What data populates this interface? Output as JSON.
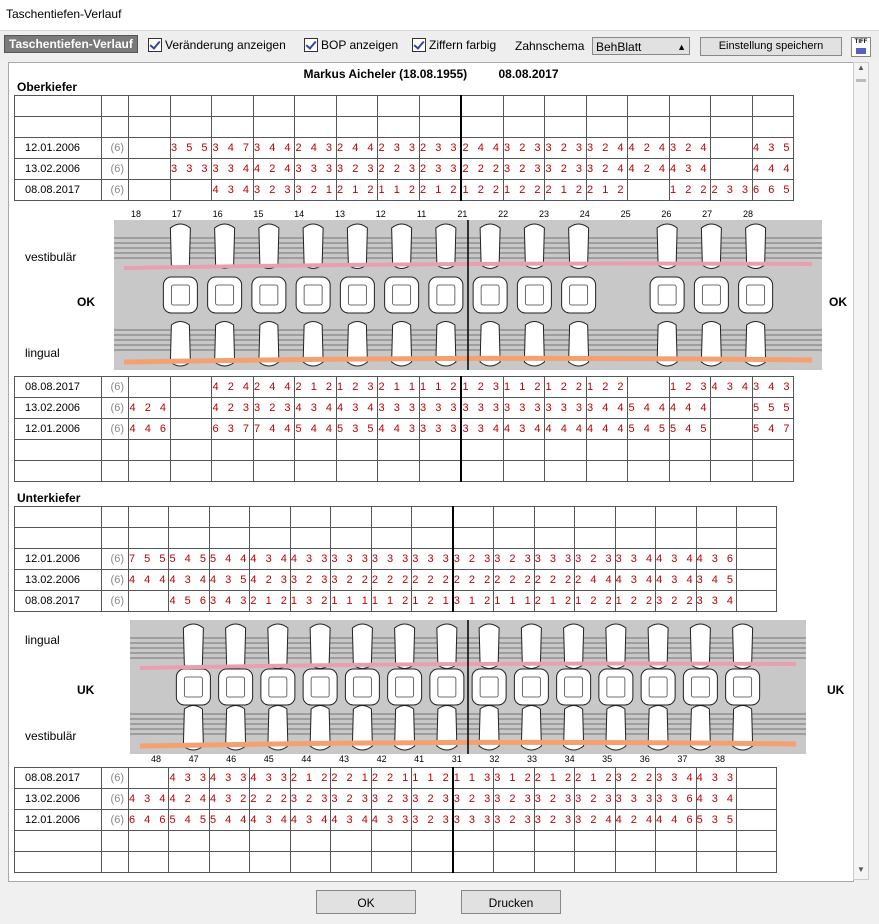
{
  "window": {
    "title": "Taschentiefen-Verlauf"
  },
  "toolbar": {
    "tab_label": "Taschentiefen-Verlauf",
    "show_changes": "Veränderung anzeigen",
    "show_bop": "BOP anzeigen",
    "colored_digits": "Ziffern farbig",
    "scheme_label": "Zahnschema",
    "scheme_value": "BehBlatt",
    "save_button": "Einstellung speichern",
    "tiff_label": "TIFF"
  },
  "header": {
    "patient": "Markus Aicheler (18.08.1955)",
    "date": "08.08.2017"
  },
  "upper": {
    "label": "Oberkiefer",
    "vestibular_label": "vestibulär",
    "lingual_label": "lingual",
    "side_label": "OK",
    "teeth": [
      "18",
      "17",
      "16",
      "15",
      "14",
      "13",
      "12",
      "11",
      "21",
      "22",
      "23",
      "24",
      "25",
      "26",
      "27",
      "28"
    ],
    "rows_top": [
      {
        "date": "12.01.2006",
        "count": "(6)",
        "values": [
          "",
          "355",
          "347",
          "344",
          "243",
          "244",
          "233",
          "233",
          "244",
          "323",
          "323",
          "324",
          "424",
          "324",
          "",
          "435"
        ]
      },
      {
        "date": "13.02.2006",
        "count": "(6)",
        "values": [
          "",
          "333",
          "334",
          "424",
          "333",
          "323",
          "223",
          "233",
          "222",
          "323",
          "323",
          "324",
          "424",
          "434",
          "",
          "444"
        ]
      },
      {
        "date": "08.08.2017",
        "count": "(6)",
        "values": [
          "",
          "",
          "434",
          "323",
          "321",
          "212",
          "112",
          "212",
          "122",
          "122",
          "212",
          "212",
          "",
          "122",
          "233",
          "665"
        ]
      }
    ],
    "rows_bottom": [
      {
        "date": "08.08.2017",
        "count": "(6)",
        "values": [
          "",
          "",
          "424",
          "244",
          "212",
          "123",
          "211",
          "112",
          "123",
          "112",
          "122",
          "122",
          "",
          "123",
          "434",
          "343"
        ]
      },
      {
        "date": "13.02.2006",
        "count": "(6)",
        "values": [
          "424",
          "",
          "423",
          "323",
          "434",
          "434",
          "333",
          "333",
          "333",
          "333",
          "333",
          "344",
          "544",
          "444",
          "",
          "555"
        ]
      },
      {
        "date": "12.01.2006",
        "count": "(6)",
        "values": [
          "446",
          "",
          "637",
          "744",
          "544",
          "535",
          "443",
          "333",
          "334",
          "434",
          "444",
          "444",
          "545",
          "545",
          "",
          "547"
        ]
      }
    ]
  },
  "lower": {
    "label": "Unterkiefer",
    "vestibular_label": "vestibulär",
    "lingual_label": "lingual",
    "side_label": "UK",
    "teeth": [
      "48",
      "47",
      "46",
      "45",
      "44",
      "43",
      "42",
      "41",
      "31",
      "32",
      "33",
      "34",
      "35",
      "36",
      "37",
      "38"
    ],
    "rows_top": [
      {
        "date": "12.01.2006",
        "count": "(6)",
        "values": [
          "755",
          "545",
          "544",
          "434",
          "433",
          "333",
          "333",
          "333",
          "323",
          "323",
          "333",
          "323",
          "334",
          "434",
          "436",
          ""
        ]
      },
      {
        "date": "13.02.2006",
        "count": "(6)",
        "values": [
          "444",
          "434",
          "435",
          "423",
          "323",
          "322",
          "222",
          "222",
          "222",
          "222",
          "222",
          "244",
          "434",
          "434",
          "345",
          ""
        ]
      },
      {
        "date": "08.08.2017",
        "count": "(6)",
        "values": [
          "",
          "456",
          "343",
          "212",
          "132",
          "111",
          "112",
          "121",
          "312",
          "111",
          "212",
          "122",
          "122",
          "322",
          "334",
          ""
        ]
      }
    ],
    "rows_bottom": [
      {
        "date": "08.08.2017",
        "count": "(6)",
        "values": [
          "",
          "433",
          "433",
          "433",
          "212",
          "221",
          "221",
          "112",
          "113",
          "312",
          "212",
          "212",
          "322",
          "334",
          "433",
          ""
        ]
      },
      {
        "date": "13.02.2006",
        "count": "(6)",
        "values": [
          "434",
          "424",
          "432",
          "222",
          "323",
          "323",
          "323",
          "323",
          "323",
          "323",
          "323",
          "323",
          "333",
          "336",
          "434",
          ""
        ]
      },
      {
        "date": "12.01.2006",
        "count": "(6)",
        "values": [
          "646",
          "545",
          "544",
          "434",
          "434",
          "434",
          "433",
          "323",
          "333",
          "323",
          "323",
          "324",
          "424",
          "446",
          "535",
          ""
        ]
      }
    ]
  },
  "scale": [
    "10",
    "8",
    "6",
    "4",
    "2"
  ],
  "footer": {
    "ok": "OK",
    "print": "Drucken"
  },
  "colors": {
    "value_red": "#c00000",
    "bop_green": "#00a000",
    "gum_pink": "#e8a0b0",
    "recession_orange": "#f4a070"
  }
}
